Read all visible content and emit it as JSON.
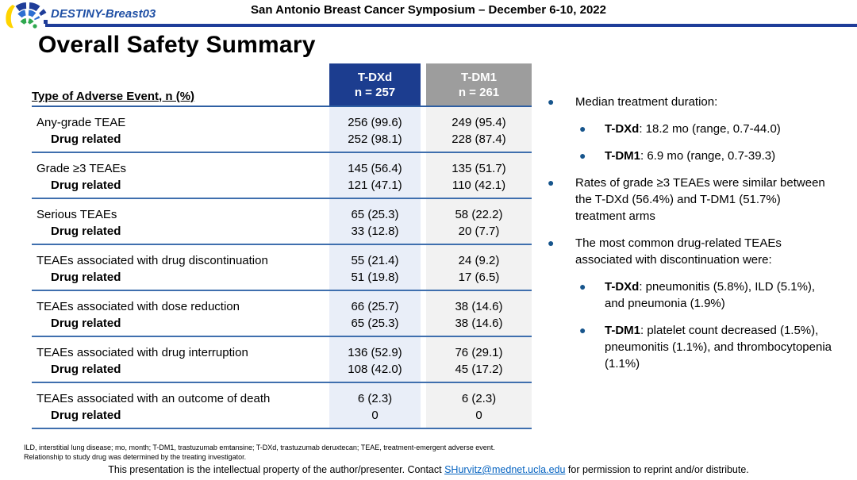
{
  "header": {
    "trial_name": "DESTINY-Breast03",
    "banner_title": "San Antonio Breast Cancer Symposium – December 6-10, 2022"
  },
  "slide": {
    "title": "Overall Safety Summary"
  },
  "table": {
    "label_header": "Type of Adverse Event, n (%)",
    "columns": [
      {
        "name": "T-DXd",
        "n": "n = 257"
      },
      {
        "name": "T-DM1",
        "n": "n = 261"
      }
    ],
    "groups": [
      {
        "label": "Any-grade TEAE",
        "tdxd": "256 (99.6)",
        "tdm1": "249 (95.4)",
        "sub_label": "Drug related",
        "sub_tdxd": "252 (98.1)",
        "sub_tdm1": "228 (87.4)"
      },
      {
        "label": "Grade ≥3 TEAEs",
        "tdxd": "145 (56.4)",
        "tdm1": "135 (51.7)",
        "sub_label": "Drug related",
        "sub_tdxd": "121 (47.1)",
        "sub_tdm1": "110 (42.1)"
      },
      {
        "label": "Serious TEAEs",
        "tdxd": "65 (25.3)",
        "tdm1": "58 (22.2)",
        "sub_label": "Drug related",
        "sub_tdxd": "33 (12.8)",
        "sub_tdm1": "20 (7.7)"
      },
      {
        "label": "TEAEs associated with drug discontinuation",
        "tdxd": "55 (21.4)",
        "tdm1": "24 (9.2)",
        "sub_label": "Drug related",
        "sub_tdxd": "51 (19.8)",
        "sub_tdm1": "17 (6.5)"
      },
      {
        "label": "TEAEs associated with dose reduction",
        "tdxd": "66 (25.7)",
        "tdm1": "38 (14.6)",
        "sub_label": "Drug related",
        "sub_tdxd": "65 (25.3)",
        "sub_tdm1": "38 (14.6)"
      },
      {
        "label": "TEAEs associated with drug interruption",
        "tdxd": "136 (52.9)",
        "tdm1": "76 (29.1)",
        "sub_label": "Drug related",
        "sub_tdxd": "108 (42.0)",
        "sub_tdm1": "45 (17.2)"
      },
      {
        "label": "TEAEs associated with an outcome of death",
        "tdxd": "6 (2.3)",
        "tdm1": "6 (2.3)",
        "sub_label": "Drug related",
        "sub_tdxd": "0",
        "sub_tdm1": "0"
      }
    ]
  },
  "bullets": [
    {
      "level": 1,
      "parts": [
        {
          "text": "Median treatment duration:"
        }
      ]
    },
    {
      "level": 2,
      "parts": [
        {
          "bold": "T-DXd"
        },
        {
          "text": ": 18.2 mo (range, 0.7-44.0)"
        }
      ]
    },
    {
      "level": 2,
      "parts": [
        {
          "bold": "T-DM1"
        },
        {
          "text": ": 6.9 mo (range, 0.7-39.3)"
        }
      ]
    },
    {
      "level": 1,
      "parts": [
        {
          "text": "Rates of grade ≥3 TEAEs were similar between the T-DXd (56.4%) and T-DM1 (51.7%) treatment arms"
        }
      ]
    },
    {
      "level": 1,
      "parts": [
        {
          "text": "The most common drug-related TEAEs associated with discontinuation were:"
        }
      ]
    },
    {
      "level": 2,
      "parts": [
        {
          "bold": "T-DXd"
        },
        {
          "text": ": pneumonitis (5.8%), ILD (5.1%), and pneumonia (1.9%)"
        }
      ]
    },
    {
      "level": 2,
      "parts": [
        {
          "bold": "T-DM1"
        },
        {
          "text": ": platelet count decreased (1.5%), pneumonitis (1.1%), and thrombocytopenia (1.1%)"
        }
      ]
    }
  ],
  "footnotes": {
    "line1": "ILD, interstitial lung disease; mo, month; T-DM1, trastuzumab emtansine; T-DXd, trastuzumab deruxtecan; TEAE, treatment-emergent adverse event.",
    "line2": "Relationship to study drug was determined by the treating investigator."
  },
  "footer": {
    "pre_link": "This presentation is the intellectual property of the author/presenter. Contact ",
    "link_text": "SHurvitz@mednet.ucla.edu",
    "post_link": " for permission to reprint and/or distribute."
  },
  "colors": {
    "tdxd_header": "#1C3D8F",
    "tdm1_header": "#9D9D9D",
    "tdxd_column": "#E9EEF8",
    "tdm1_column": "#F2F2F2",
    "rule_blue": "#1F3D99",
    "row_line_blue": "#3F6FAE",
    "bullet_blue": "#17558C",
    "trial_name_blue": "#2050A5",
    "link_blue": "#0563C1"
  }
}
